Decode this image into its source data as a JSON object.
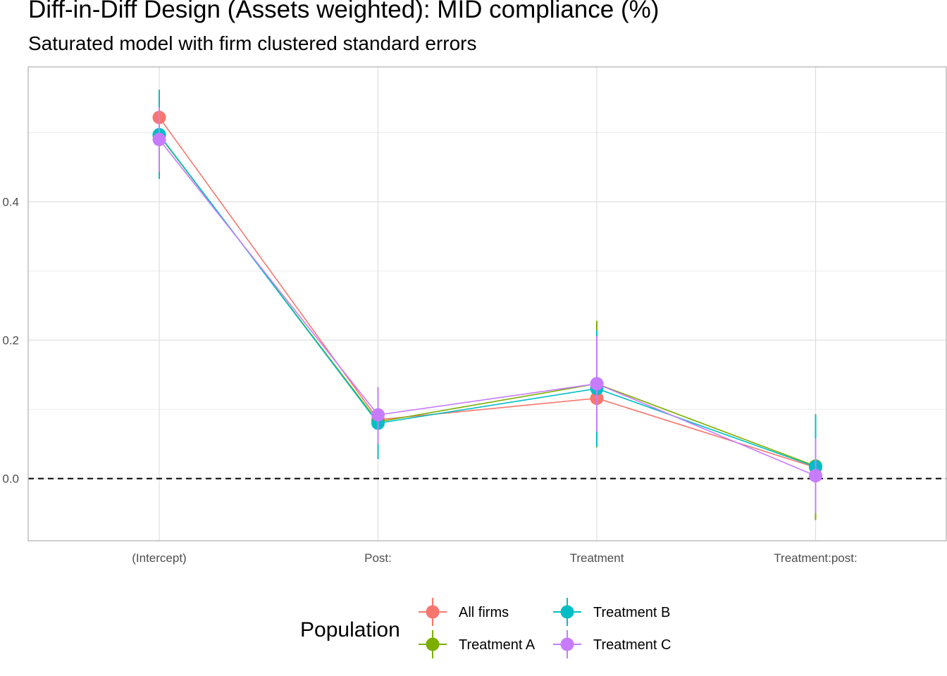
{
  "chart_data": {
    "type": "line",
    "title": "Diff-in-Diff Design (Assets weighted): MID compliance (%)",
    "subtitle": "Saturated model with firm clustered standard errors",
    "xlabel": "",
    "ylabel": "",
    "categories": [
      "(Intercept)",
      "Post:",
      "Treatment",
      "Treatment:post:"
    ],
    "ylim": [
      -0.09,
      0.595
    ],
    "y_ticks": [
      0.0,
      0.2,
      0.4
    ],
    "y_tick_labels": [
      "0.0",
      "0.2",
      "0.4"
    ],
    "reference_line": {
      "y": 0,
      "style": "dashed"
    },
    "grid": true,
    "legend": {
      "title": "Population",
      "position": "bottom"
    },
    "series": [
      {
        "name": "All firms",
        "color": "#F8766D",
        "values": [
          0.522,
          0.085,
          0.116,
          0.016
        ],
        "lower": [
          0.49,
          0.05,
          0.07,
          -0.03
        ],
        "upper": [
          0.555,
          0.12,
          0.16,
          0.06
        ]
      },
      {
        "name": "Treatment A",
        "color": "#7CAE00",
        "values": [
          0.496,
          0.082,
          0.137,
          0.018
        ],
        "lower": [
          0.44,
          0.03,
          0.045,
          -0.06
        ],
        "upper": [
          0.55,
          0.132,
          0.228,
          0.093
        ]
      },
      {
        "name": "Treatment B",
        "color": "#00BFC4",
        "values": [
          0.497,
          0.08,
          0.13,
          0.017
        ],
        "lower": [
          0.433,
          0.028,
          0.046,
          -0.05
        ],
        "upper": [
          0.562,
          0.132,
          0.214,
          0.092
        ]
      },
      {
        "name": "Treatment C",
        "color": "#C77CFF",
        "values": [
          0.49,
          0.092,
          0.137,
          0.004
        ],
        "lower": [
          0.443,
          0.05,
          0.068,
          -0.05
        ],
        "upper": [
          0.537,
          0.132,
          0.206,
          0.058
        ]
      }
    ]
  }
}
